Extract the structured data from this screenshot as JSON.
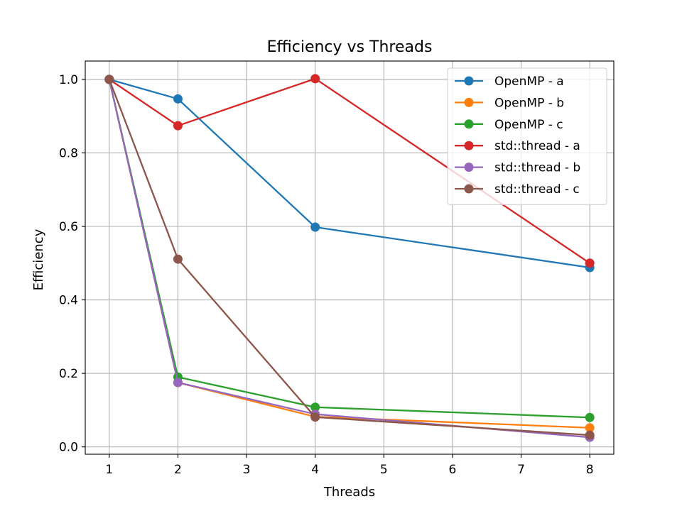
{
  "chart_data": {
    "type": "line",
    "title": "Efficiency vs Threads",
    "xlabel": "Threads",
    "ylabel": "Efficiency",
    "x": [
      1,
      2,
      4,
      8
    ],
    "xlim": [
      0.65,
      8.35
    ],
    "ylim": [
      -0.02,
      1.05
    ],
    "xticks": [
      1,
      2,
      3,
      4,
      5,
      6,
      7,
      8
    ],
    "yticks": [
      "0.0",
      "0.2",
      "0.4",
      "0.6",
      "0.8",
      "1.0"
    ],
    "grid": true,
    "legend_position": "top-right",
    "series": [
      {
        "name": "OpenMP - a",
        "color": "#1f77b4",
        "values": [
          1.0,
          0.947,
          0.598,
          0.488
        ]
      },
      {
        "name": "OpenMP - b",
        "color": "#ff7f0e",
        "values": [
          1.0,
          0.175,
          0.082,
          0.052
        ]
      },
      {
        "name": "OpenMP - c",
        "color": "#2ca02c",
        "values": [
          1.0,
          0.19,
          0.108,
          0.08
        ]
      },
      {
        "name": "std::thread - a",
        "color": "#d62728",
        "values": [
          1.0,
          0.874,
          1.002,
          0.5
        ]
      },
      {
        "name": "std::thread - b",
        "color": "#9467bd",
        "values": [
          1.0,
          0.175,
          0.089,
          0.026
        ]
      },
      {
        "name": "std::thread - c",
        "color": "#8c564b",
        "values": [
          1.0,
          0.511,
          0.081,
          0.032
        ]
      }
    ]
  }
}
